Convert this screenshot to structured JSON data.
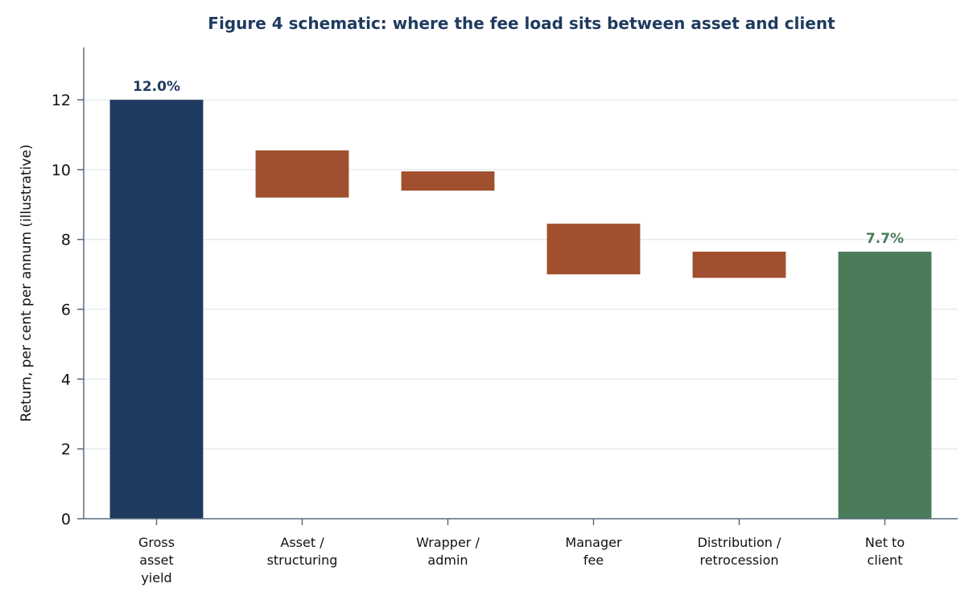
{
  "chart_data": {
    "type": "bar",
    "subtype": "waterfall",
    "title": "Figure 4 schematic: where the fee load sits between asset and client",
    "xlabel": "",
    "ylabel": "Return, per cent per annum (illustrative)",
    "ylim": [
      0,
      13.5
    ],
    "yticks": [
      "0",
      "2",
      "4",
      "6",
      "8",
      "10",
      "12"
    ],
    "grid": "horizontal",
    "categories": [
      [
        "Gross",
        "asset",
        "yield"
      ],
      [
        "Asset /",
        "structuring"
      ],
      [
        "Wrapper /",
        "admin"
      ],
      [
        "Manager",
        "fee"
      ],
      [
        "Distribution /",
        "retrocession"
      ],
      [
        "Net to",
        "client"
      ]
    ],
    "bars": [
      {
        "kind": "total",
        "bottom": 0,
        "top": 12.0,
        "color": "#1f3a5f",
        "label": "12.0%"
      },
      {
        "kind": "fee",
        "bottom": 9.2,
        "top": 10.55,
        "color": "#a0502e"
      },
      {
        "kind": "fee",
        "bottom": 9.4,
        "top": 9.95,
        "color": "#a0502e"
      },
      {
        "kind": "fee",
        "bottom": 7.0,
        "top": 8.45,
        "color": "#a0502e"
      },
      {
        "kind": "fee",
        "bottom": 6.9,
        "top": 7.65,
        "color": "#a0502e"
      },
      {
        "kind": "total",
        "bottom": 0,
        "top": 7.65,
        "color": "#4a7c59",
        "label": "7.7%"
      }
    ],
    "colors": {
      "title": "#1f3a5f",
      "gross": "#1f3a5f",
      "fee": "#a0502e",
      "net": "#4a7c59",
      "axis": "#5a6a7e",
      "grid": "#e6eaee"
    }
  }
}
